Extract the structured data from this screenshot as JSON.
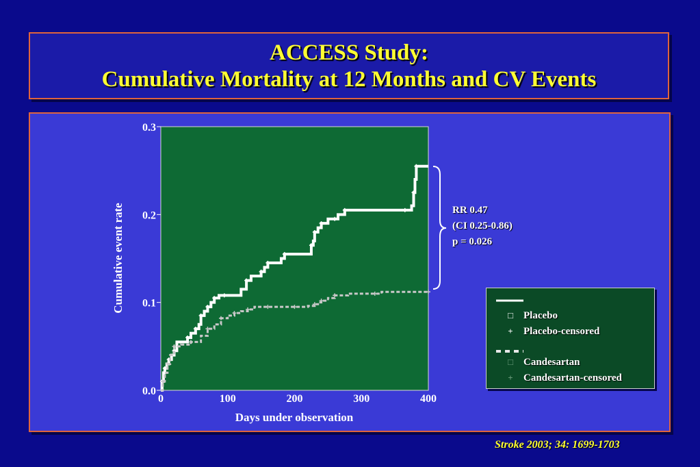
{
  "title": {
    "line1": "ACCESS Study:",
    "line2": "Cumulative Mortality at 12 Months and CV Events"
  },
  "chart_data": {
    "type": "line",
    "title": "",
    "xlabel": "Days under observation",
    "ylabel": "Cumulative event rate",
    "xlim": [
      0,
      400
    ],
    "ylim": [
      0.0,
      0.3
    ],
    "x_ticks": [
      "0",
      "100",
      "200",
      "300",
      "400"
    ],
    "y_ticks": [
      "0.0",
      "0.1",
      "0.2",
      "0.3"
    ],
    "grid": false,
    "legend_position": "right",
    "background_color": "#0e6a34",
    "series": [
      {
        "name": "Placebo",
        "color": "#ffffff",
        "style": "solid",
        "x": [
          0,
          2,
          4,
          6,
          9,
          12,
          16,
          20,
          24,
          40,
          45,
          52,
          57,
          60,
          65,
          70,
          75,
          80,
          87,
          95,
          120,
          128,
          135,
          150,
          155,
          160,
          180,
          185,
          190,
          225,
          228,
          230,
          235,
          240,
          250,
          260,
          265,
          275,
          295,
          365,
          375,
          378,
          380,
          382,
          400
        ],
        "y": [
          0,
          0.01,
          0.02,
          0.025,
          0.03,
          0.035,
          0.04,
          0.045,
          0.055,
          0.06,
          0.065,
          0.07,
          0.075,
          0.085,
          0.09,
          0.095,
          0.1,
          0.105,
          0.108,
          0.108,
          0.115,
          0.125,
          0.13,
          0.135,
          0.14,
          0.145,
          0.15,
          0.155,
          0.155,
          0.165,
          0.17,
          0.18,
          0.185,
          0.19,
          0.195,
          0.195,
          0.2,
          0.205,
          0.205,
          0.205,
          0.21,
          0.225,
          0.24,
          0.255,
          0.255
        ]
      },
      {
        "name": "Candesartan",
        "color": "#c8c8c8",
        "style": "dashed",
        "x": [
          0,
          3,
          6,
          10,
          14,
          20,
          30,
          45,
          60,
          70,
          80,
          90,
          100,
          110,
          120,
          130,
          140,
          160,
          180,
          200,
          220,
          230,
          235,
          240,
          250,
          260,
          280,
          320,
          330,
          400
        ],
        "y": [
          0,
          0.01,
          0.02,
          0.03,
          0.04,
          0.05,
          0.052,
          0.055,
          0.062,
          0.07,
          0.075,
          0.082,
          0.085,
          0.088,
          0.09,
          0.092,
          0.095,
          0.095,
          0.095,
          0.095,
          0.096,
          0.098,
          0.1,
          0.102,
          0.105,
          0.108,
          0.11,
          0.11,
          0.112,
          0.112
        ]
      }
    ],
    "annotation": {
      "lines": [
        "RR 0.47",
        "(CI 0.25-0.86)",
        "p = 0.026"
      ]
    }
  },
  "legend": {
    "placebo_label": "Placebo",
    "placebo_censored_label": "Placebo-censored",
    "candesartan_label": "Candesartan",
    "candesartan_censored_label": "Candesartan-censored",
    "placebo_symbol": "□",
    "placebo_censored_symbol": "+",
    "candesartan_symbol": "□",
    "candesartan_censored_symbol": "+"
  },
  "citation": "Stroke 2003; 34: 1699-1703"
}
